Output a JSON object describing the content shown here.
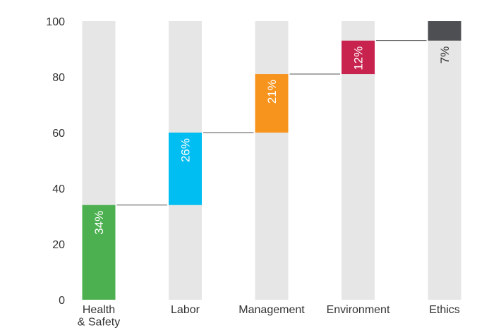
{
  "chart_data": {
    "type": "waterfall",
    "categories": [
      "Health\n& Safety",
      "Labor",
      "Management",
      "Environment",
      "Ethics"
    ],
    "values": [
      34,
      26,
      21,
      12,
      7
    ],
    "value_labels": [
      "34%",
      "26%",
      "21%",
      "12%",
      "7%"
    ],
    "colors": [
      "#4cb050",
      "#00bdf2",
      "#f7941d",
      "#c8234f",
      "#4d4f53"
    ],
    "ylim": [
      0,
      100
    ],
    "yticks": [
      0,
      20,
      40,
      60,
      80,
      100
    ]
  }
}
